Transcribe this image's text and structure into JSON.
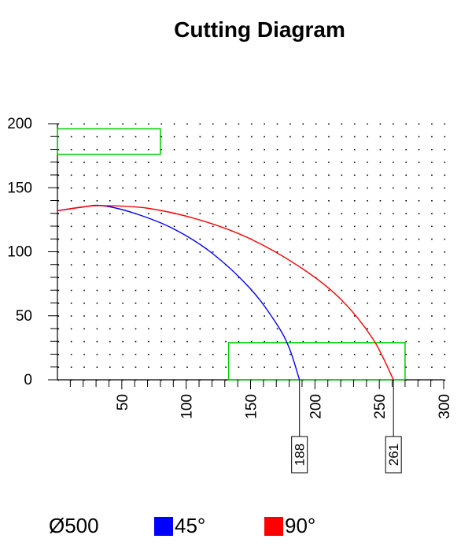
{
  "chart_data": {
    "type": "line",
    "title": "Cutting Diagram",
    "xlabel": "",
    "ylabel": "",
    "xlim": [
      0,
      300
    ],
    "ylim": [
      0,
      200
    ],
    "x_ticks": [
      "50",
      "100",
      "150",
      "200",
      "250",
      "300"
    ],
    "y_ticks": [
      "0",
      "50",
      "100",
      "150",
      "200"
    ],
    "grid": "dot grid",
    "series": [
      {
        "name": "45°",
        "color": "#0000ff",
        "x": [
          0,
          20,
          35,
          60,
          90,
          120,
          150,
          170,
          180,
          188
        ],
        "y": [
          132,
          135,
          136,
          130,
          118,
          99,
          71,
          44,
          25,
          0
        ]
      },
      {
        "name": "90°",
        "color": "#ff0000",
        "x": [
          0,
          20,
          35,
          70,
          110,
          150,
          190,
          220,
          245,
          261
        ],
        "y": [
          132,
          135,
          136,
          134,
          125,
          110,
          87,
          63,
          32,
          0
        ]
      }
    ],
    "rectangles": [
      {
        "x": [
          0,
          80
        ],
        "y": [
          176,
          196
        ],
        "color": "#00cc00"
      },
      {
        "x": [
          133,
          270
        ],
        "y": [
          0,
          29
        ],
        "color": "#00cc00"
      }
    ],
    "markers": [
      {
        "x": 188,
        "label": "188"
      },
      {
        "x": 261,
        "label": "261"
      }
    ]
  },
  "legend": {
    "diameter": "Ø500",
    "items": [
      {
        "label": "45°",
        "color": "#0000ff"
      },
      {
        "label": "90°",
        "color": "#ff0000"
      }
    ]
  }
}
